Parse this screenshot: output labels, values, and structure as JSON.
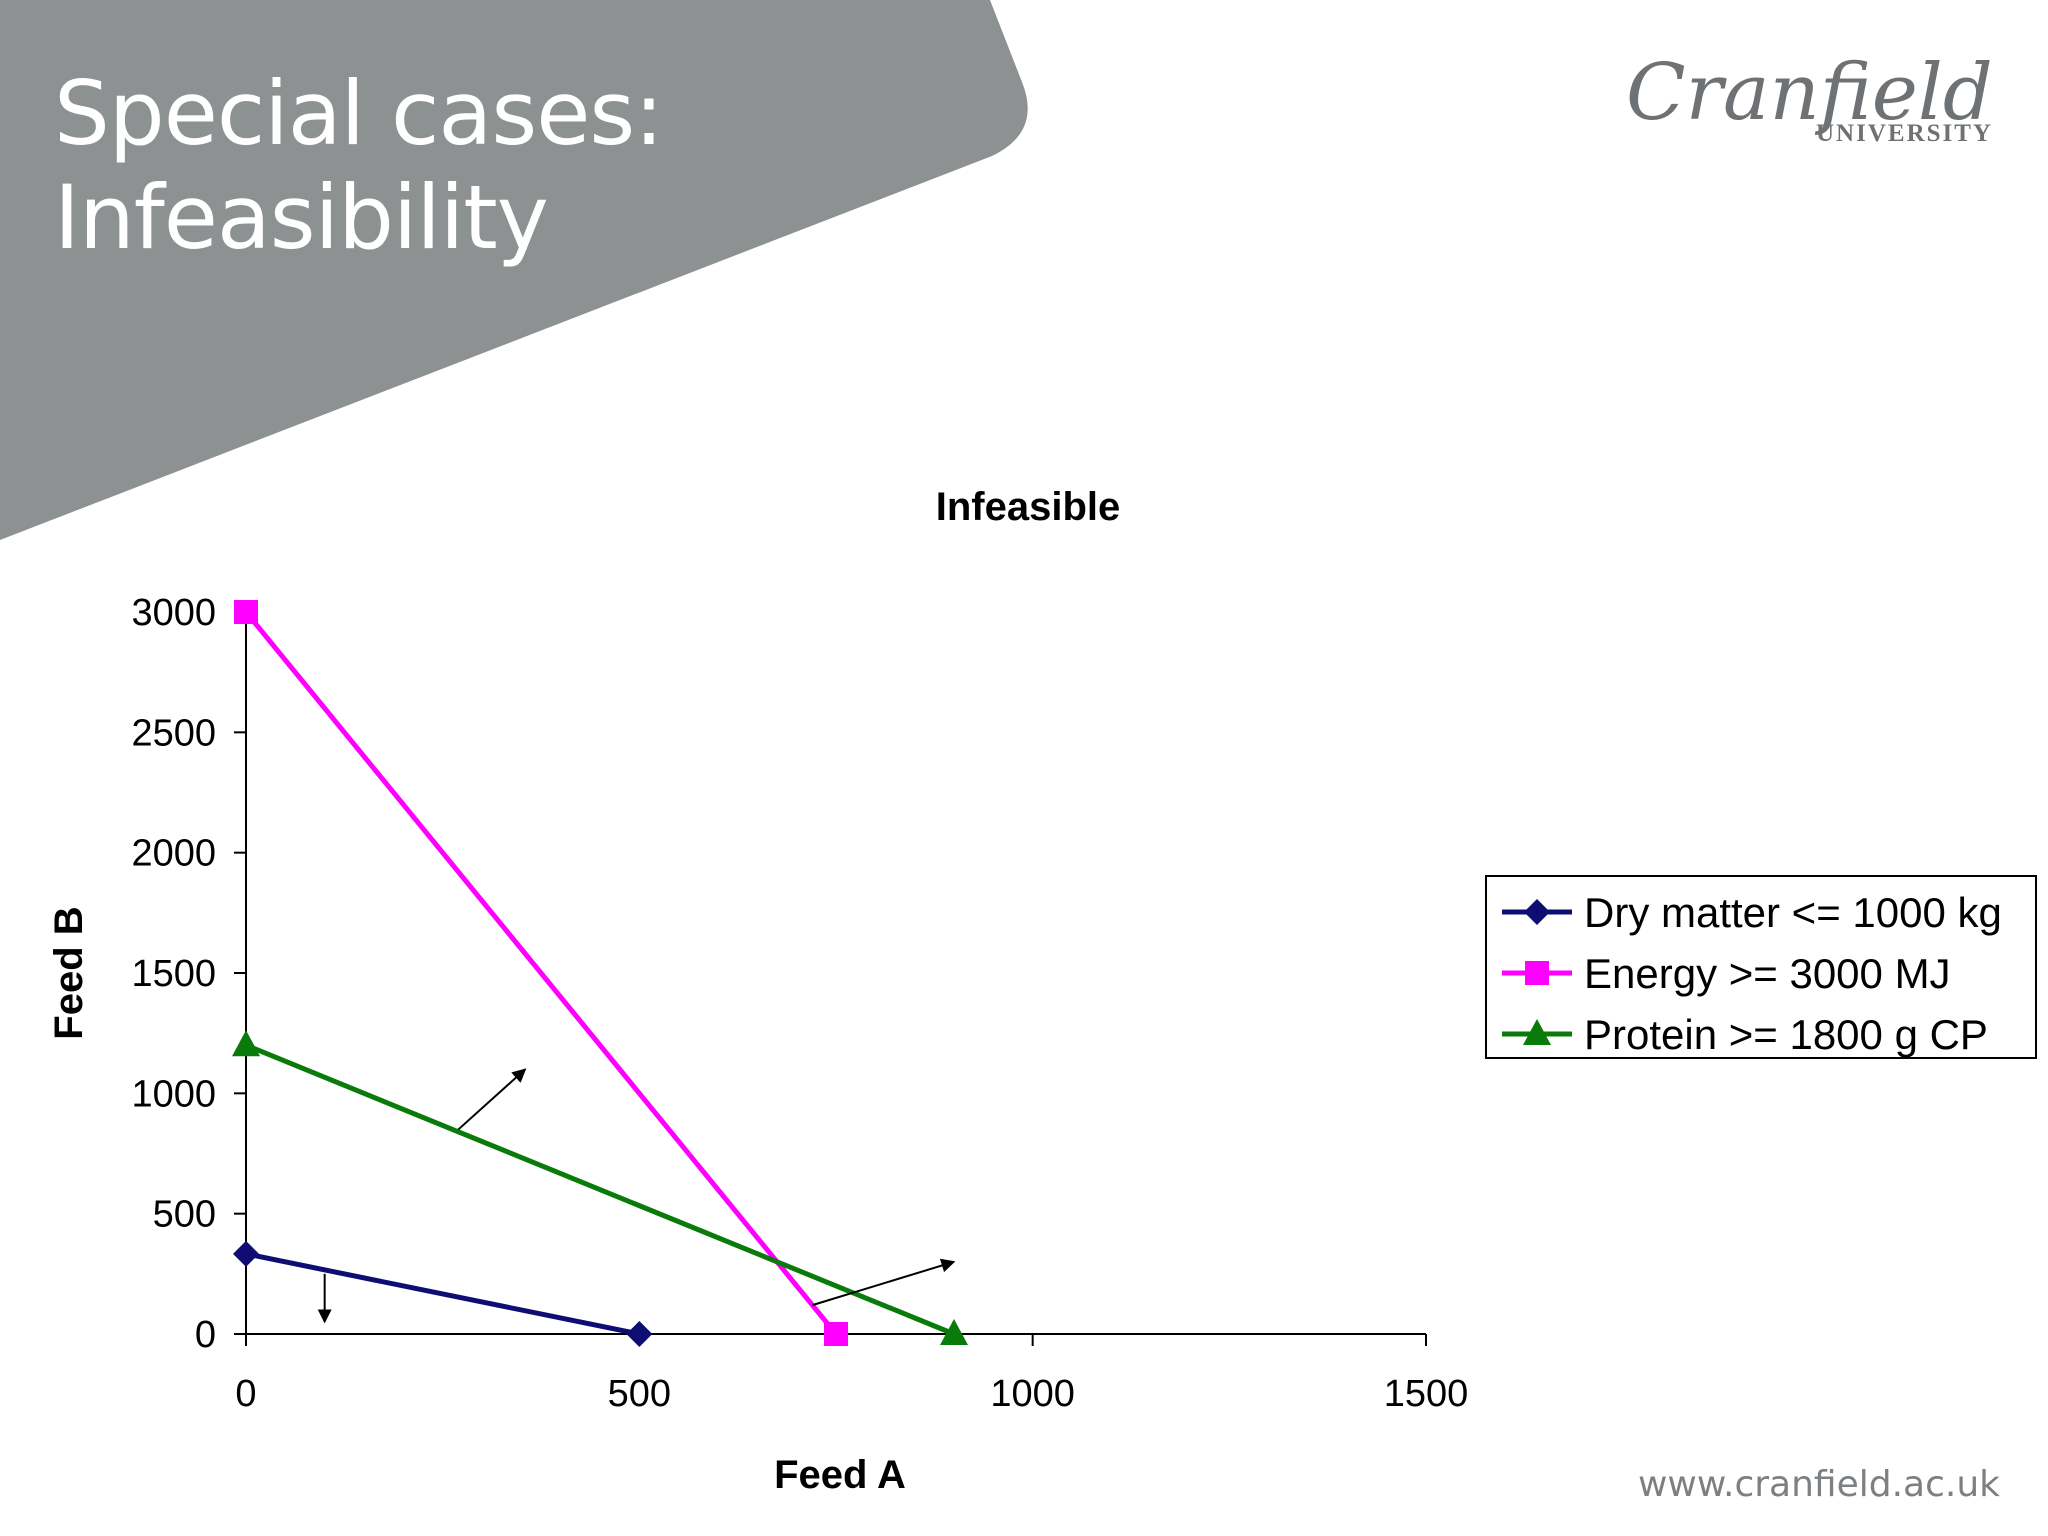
{
  "slide": {
    "title_line1": "Special cases:",
    "title_line2": "Infeasibility",
    "logo_name": "Cranfield",
    "logo_sub": "UNIVERSITY",
    "footer_url": "www.cranfield.ac.uk",
    "banner_color": "#8e9192"
  },
  "chart_data": {
    "type": "line",
    "title": "Infeasible",
    "xlabel": "Feed A",
    "ylabel": "Feed B",
    "xlim": [
      0,
      1500
    ],
    "ylim": [
      0,
      3000
    ],
    "xticks": [
      0,
      500,
      1000,
      1500
    ],
    "yticks": [
      0,
      500,
      1000,
      1500,
      2000,
      2500,
      3000
    ],
    "grid": false,
    "legend_position": "right",
    "series": [
      {
        "name": "Dry matter <= 1000 kg",
        "color": "#0d0d73",
        "marker": "diamond",
        "points": [
          [
            0,
            333
          ],
          [
            500,
            0
          ]
        ]
      },
      {
        "name": "Energy >= 3000 MJ",
        "color": "#ff00ff",
        "marker": "square",
        "points": [
          [
            0,
            3000
          ],
          [
            750,
            0
          ]
        ]
      },
      {
        "name": "Protein >= 1800 g CP",
        "color": "#0a7a0a",
        "marker": "triangle",
        "points": [
          [
            0,
            1200
          ],
          [
            900,
            0
          ]
        ]
      }
    ],
    "annotations": [
      {
        "type": "arrow",
        "from": [
          100,
          250
        ],
        "to": [
          100,
          50
        ]
      },
      {
        "type": "arrow",
        "from": [
          270,
          850
        ],
        "to": [
          355,
          1100
        ]
      },
      {
        "type": "arrow",
        "from": [
          720,
          120
        ],
        "to": [
          900,
          300
        ]
      }
    ]
  }
}
